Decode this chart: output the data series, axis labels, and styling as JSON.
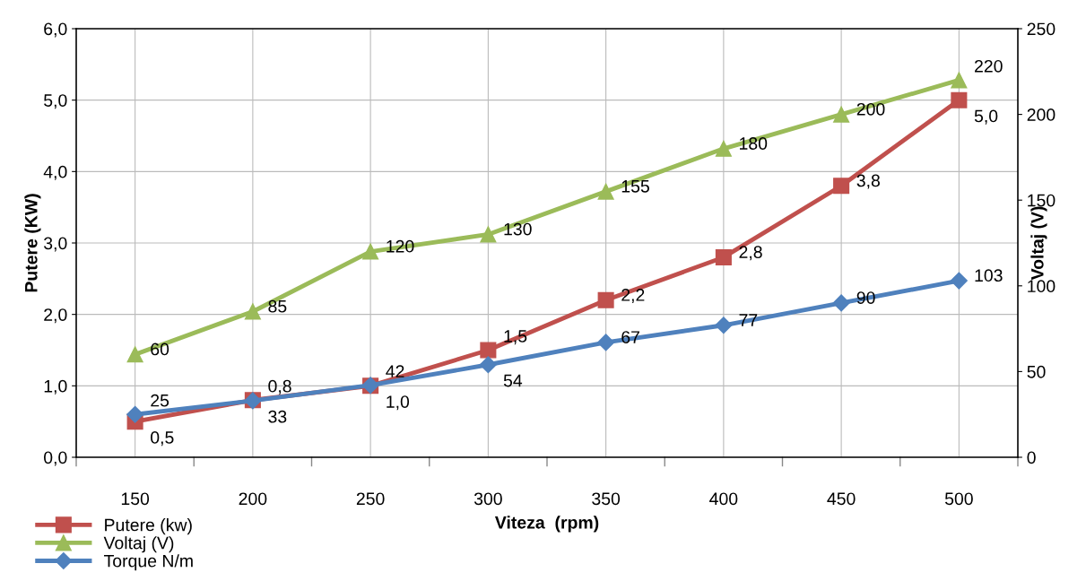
{
  "chart_data": {
    "type": "line",
    "xlabel": "Viteza  (rpm)",
    "ylabel": "Putere (KW)",
    "y2label": "Voltaj (V)",
    "categories": [
      "150",
      "200",
      "250",
      "300",
      "350",
      "400",
      "450",
      "500"
    ],
    "ylim": [
      0,
      6
    ],
    "yticks": [
      {
        "value": 0,
        "label": "0,0"
      },
      {
        "value": 1,
        "label": "1,0"
      },
      {
        "value": 2,
        "label": "2,0"
      },
      {
        "value": 3,
        "label": "3,0"
      },
      {
        "value": 4,
        "label": "4,0"
      },
      {
        "value": 5,
        "label": "5,0"
      },
      {
        "value": 6,
        "label": "6,0"
      }
    ],
    "y2lim": [
      0,
      250
    ],
    "y2ticks": [
      0,
      50,
      100,
      150,
      200,
      250
    ],
    "grid": true,
    "legend": "bottom left",
    "line_style": "solid",
    "series": [
      {
        "name": "Putere (kw)",
        "color": "#c0504d",
        "marker": "square",
        "values": [
          0.5,
          0.8,
          1.0,
          1.5,
          2.2,
          2.8,
          3.8,
          5.0
        ],
        "value_labels": [
          "0,5",
          "0,8",
          "1,0",
          "1,5",
          "2,2",
          "2,8",
          "3,8",
          "5,0"
        ]
      },
      {
        "name": "Voltaj (V)",
        "color": "#9bbb59",
        "marker": "triangle",
        "axis": "y2",
        "values": [
          60,
          85,
          120,
          130,
          155,
          180,
          200,
          220
        ],
        "value_labels": [
          "60",
          "85",
          "120",
          "130",
          "155",
          "180",
          "200",
          "220"
        ]
      },
      {
        "name": "Torque N/m",
        "color": "#4f81bd",
        "marker": "diamond",
        "axis": "y2",
        "values": [
          25,
          33,
          42,
          54,
          67,
          77,
          90,
          103
        ],
        "value_labels": [
          "25",
          "33",
          "42",
          "54",
          "67",
          "77",
          "90",
          "103"
        ]
      }
    ]
  }
}
